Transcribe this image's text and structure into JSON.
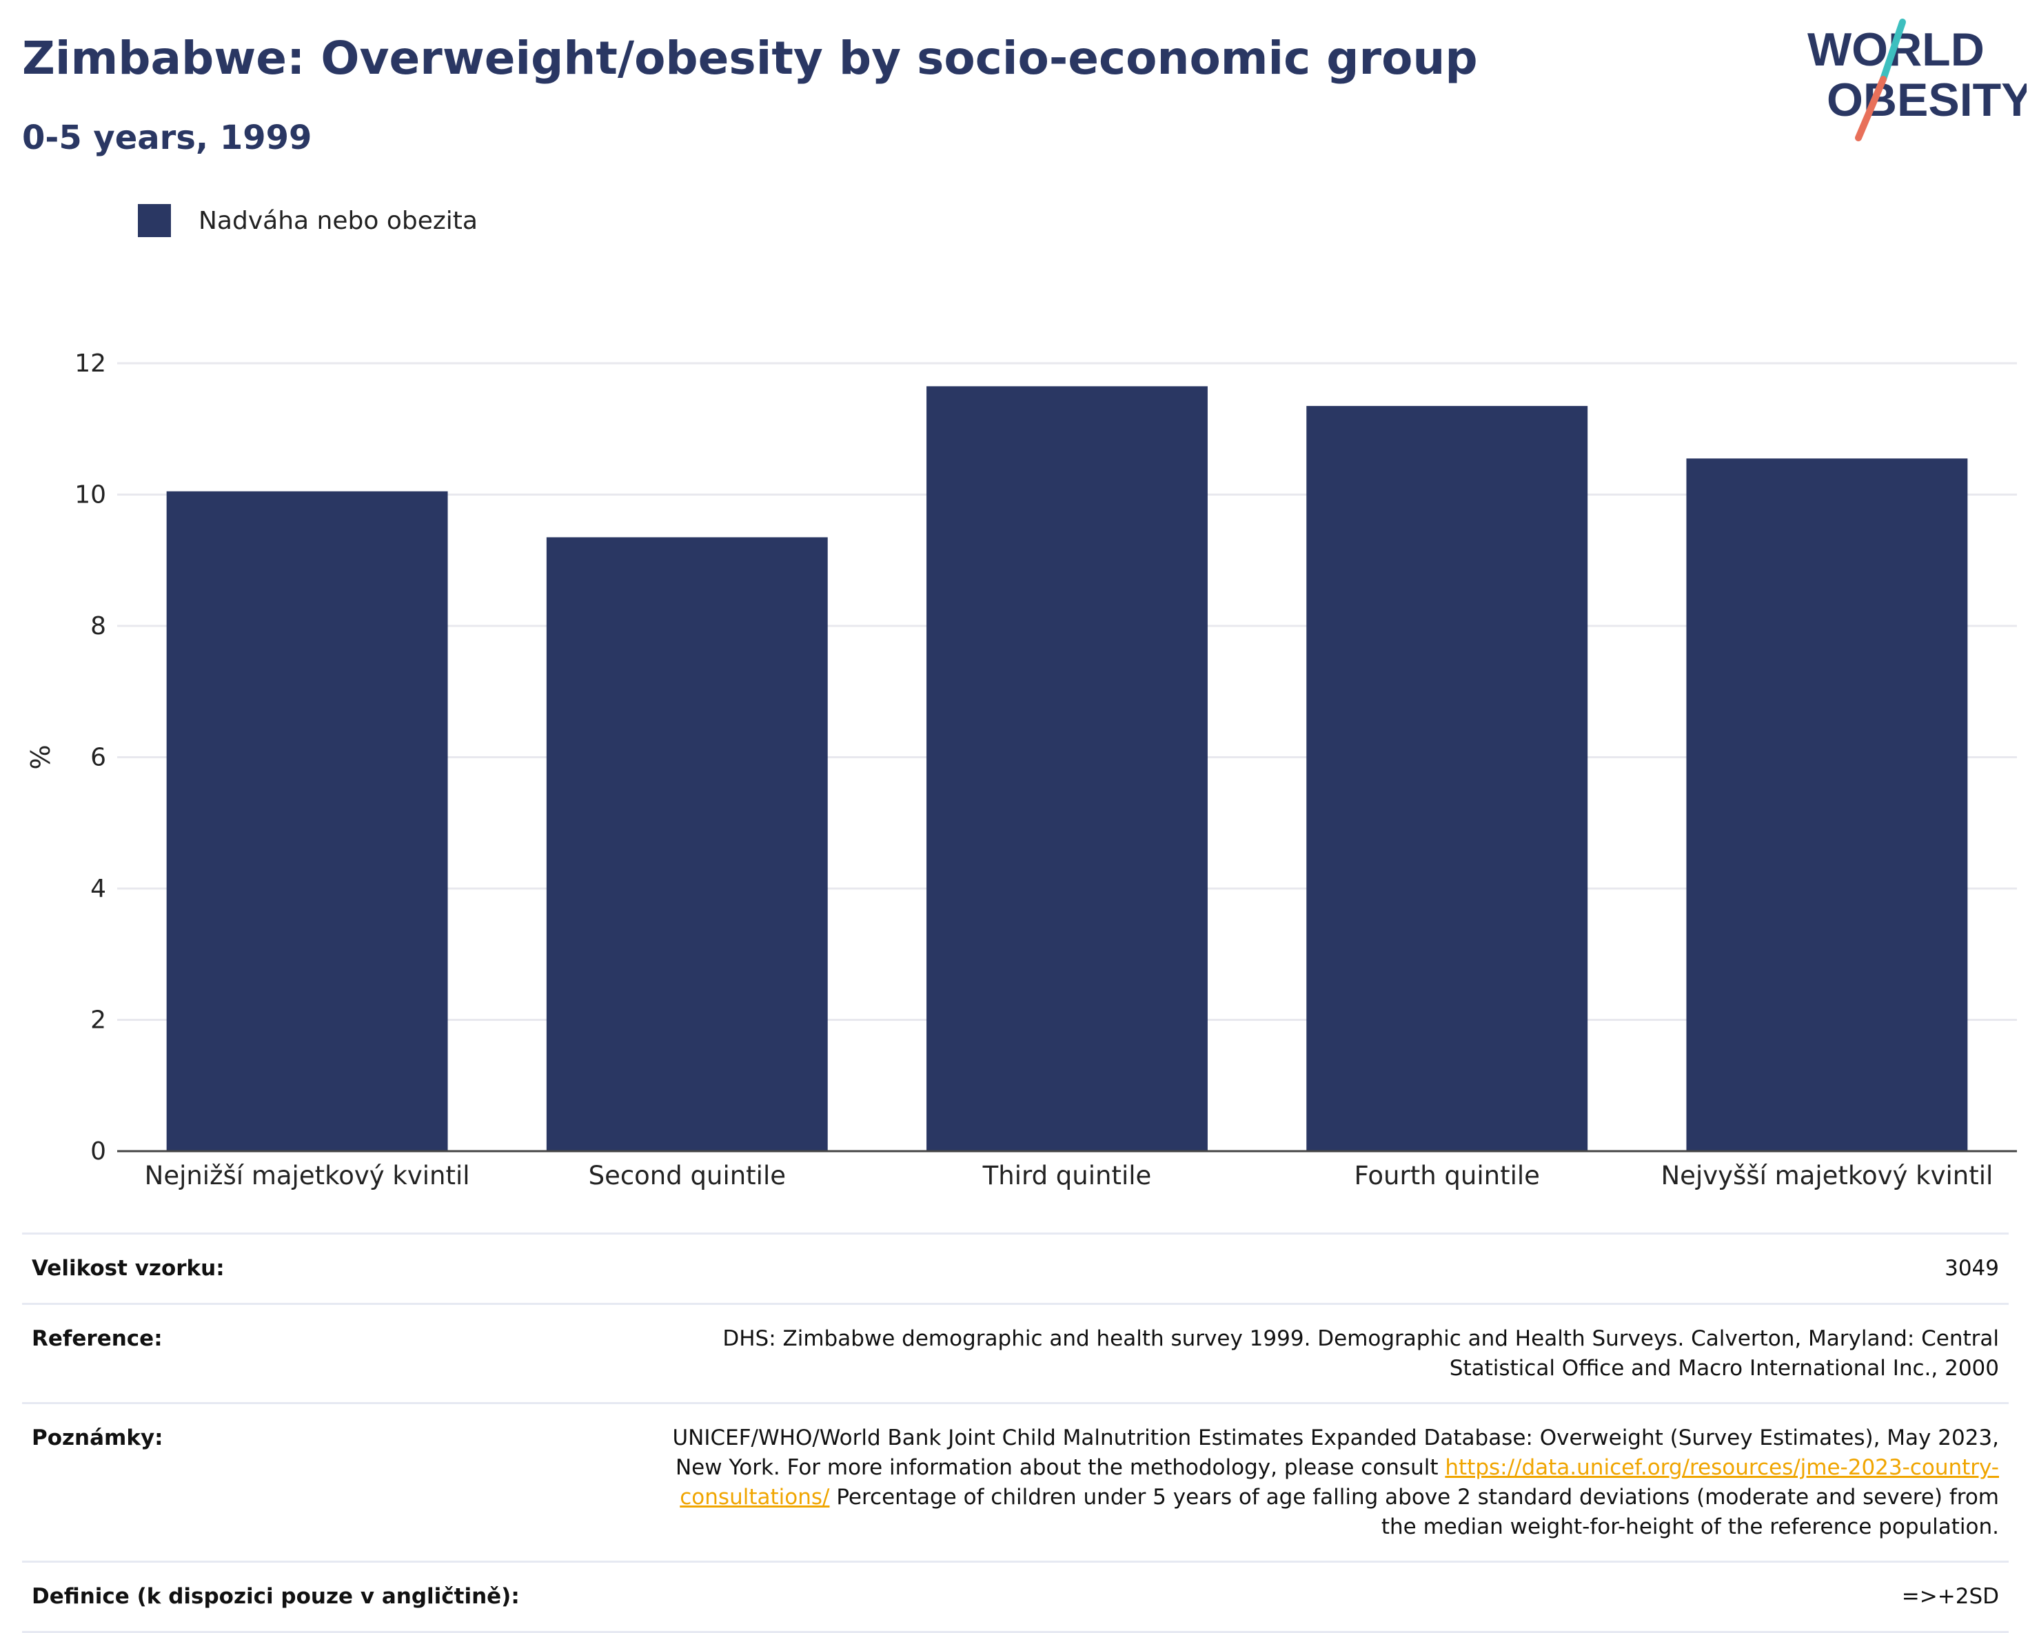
{
  "header": {
    "title": "Zimbabwe: Overweight/obesity by socio-economic group",
    "subtitle": "0-5 years, 1999"
  },
  "logo": {
    "line1": "WORLD",
    "line2": "OBESITY",
    "colors": {
      "text": "#2a3763",
      "slash_top": "#3dbfbf",
      "slash_bottom": "#e8705a"
    }
  },
  "legend": {
    "label": "Nadváha nebo obezita"
  },
  "colors": {
    "bar": "#2a3763",
    "grid": "#e8e8ee",
    "axis": "#444444",
    "link": "#f0a500"
  },
  "chart_data": {
    "type": "bar",
    "categories": [
      "Nejnižší majetkový kvintil",
      "Second quintile",
      "Third quintile",
      "Fourth quintile",
      "Nejvyšší majetkový kvintil"
    ],
    "series": [
      {
        "name": "Nadváha nebo obezita",
        "values": [
          10.05,
          9.35,
          11.65,
          11.35,
          10.55
        ]
      }
    ],
    "ylabel": "%",
    "ylim": [
      0,
      12
    ],
    "yticks": [
      "0",
      "2",
      "4",
      "6",
      "8",
      "10",
      "12"
    ],
    "grid": true,
    "legend_position": "top-left"
  },
  "info": {
    "sample_label": "Velikost vzorku:",
    "sample_value": "3049",
    "reference_label": "Reference:",
    "reference_value": "DHS: Zimbabwe demographic and health survey 1999. Demographic and Health Surveys. Calverton, Maryland: Central Statistical Office and Macro International Inc., 2000",
    "notes_label": "Poznámky:",
    "notes_before_link": "UNICEF/WHO/World Bank Joint Child Malnutrition Estimates Expanded Database: Overweight (Survey Estimates), May 2023, New York. For more information about the methodology, please consult",
    "notes_link": "https://data.unicef.org/resources/jme-2023-country-consultations/",
    "notes_after_link": "Percentage of children under 5 years of age falling above 2 standard deviations (moderate and severe) from the median weight-for-height of the reference population.",
    "definition_label": "Definice (k dispozici pouze v angličtině):",
    "definition_value": "=>+2SD"
  }
}
